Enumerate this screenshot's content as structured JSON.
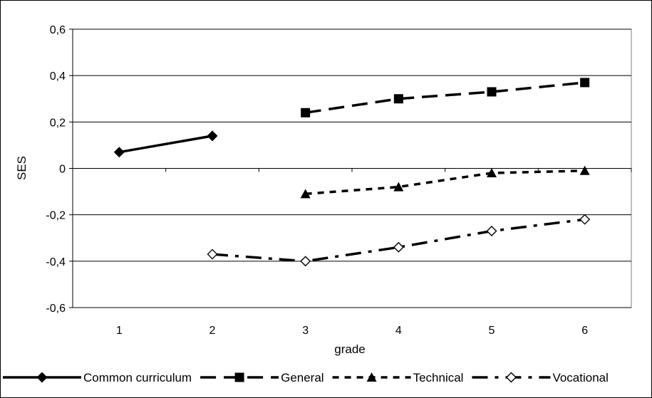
{
  "chart_data": {
    "type": "line",
    "title": "",
    "xlabel": "grade",
    "ylabel": "SES",
    "categories": [
      "1",
      "2",
      "3",
      "4",
      "5",
      "6"
    ],
    "ylim": [
      -0.6,
      0.6
    ],
    "yticks": [
      -0.6,
      -0.4,
      -0.2,
      0,
      0.2,
      0.4,
      0.6
    ],
    "ytick_labels": [
      "-0,6",
      "-0,4",
      "-0,2",
      "0",
      "0,2",
      "0,4",
      "0,6"
    ],
    "grid": "horizontal",
    "legend_position": "bottom",
    "series": [
      {
        "name": "Common curriculum",
        "values": [
          0.07,
          0.14,
          null,
          null,
          null,
          null
        ],
        "marker": "diamond-filled",
        "dash": "solid"
      },
      {
        "name": "General",
        "values": [
          null,
          null,
          0.24,
          0.3,
          0.33,
          0.37
        ],
        "marker": "square-filled",
        "dash": "long-dash"
      },
      {
        "name": "Technical",
        "values": [
          null,
          null,
          -0.11,
          -0.08,
          -0.02,
          -0.01
        ],
        "marker": "triangle-filled",
        "dash": "short-dash"
      },
      {
        "name": "Vocational",
        "values": [
          null,
          -0.37,
          -0.4,
          -0.34,
          -0.27,
          -0.22
        ],
        "marker": "diamond-open",
        "dash": "dash-dot"
      }
    ]
  }
}
